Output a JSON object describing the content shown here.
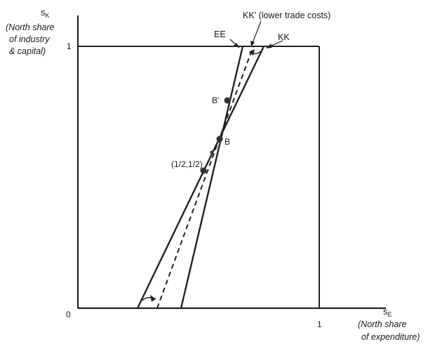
{
  "diagram": {
    "y_axis": {
      "symbol": "s",
      "symbol_sub": "K",
      "caption_lines": [
        "(North share",
        "of industry",
        "& capital)"
      ]
    },
    "x_axis": {
      "symbol": "s",
      "symbol_sub": "E",
      "caption_lines": [
        "(North share",
        "of expenditure)"
      ]
    },
    "ticks": {
      "origin": "0",
      "x_one": "1",
      "y_one": "1"
    },
    "curve_labels": {
      "ee": "EE",
      "kk_prime": "KK' (lower trade costs)",
      "kk": "KK"
    },
    "points": {
      "b_prime": "B'",
      "b": "B",
      "symmetric": "(1/2,1/2)"
    }
  }
}
